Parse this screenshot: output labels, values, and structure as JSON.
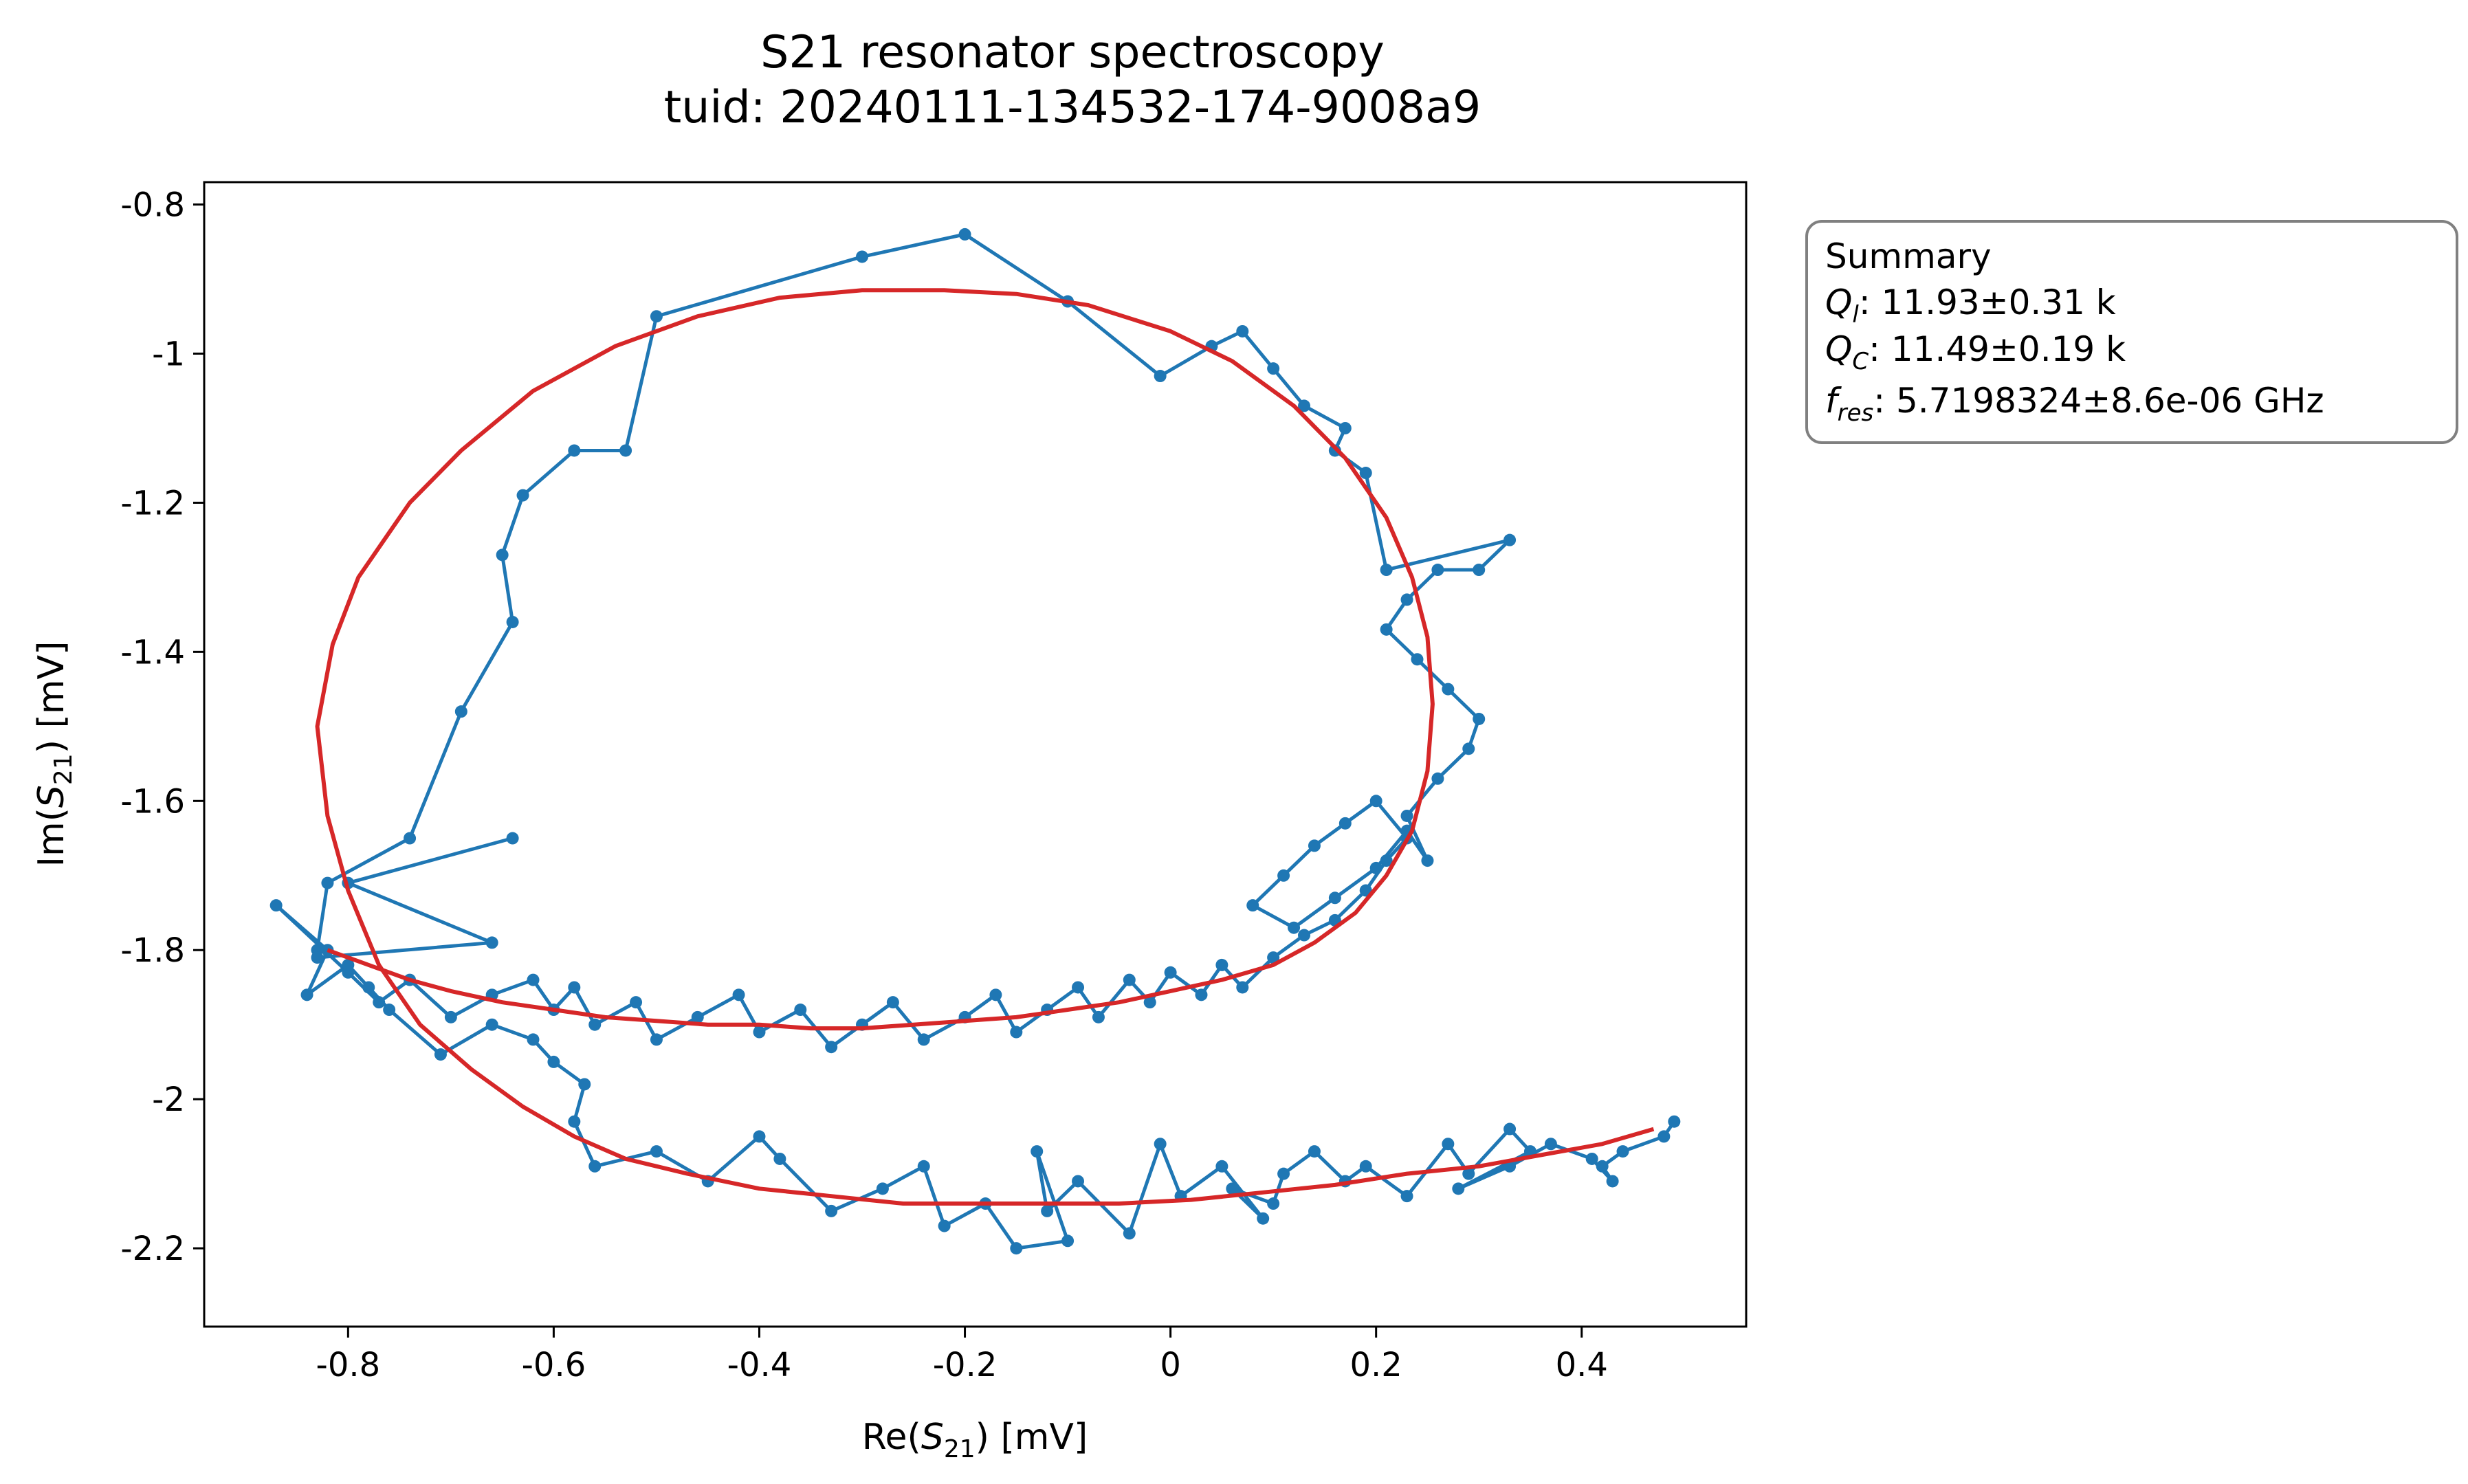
{
  "chart_data": {
    "type": "line",
    "title": "S21 resonator spectroscopy",
    "subtitle": "tuid: 20240111-134532-174-9008a9",
    "xlabel": {
      "prefix": "Re(",
      "sym": "S",
      "sub": "21",
      "suffix": ") [mV]"
    },
    "ylabel": {
      "prefix": "Im(",
      "sym": "S",
      "sub": "21",
      "suffix": ") [mV]"
    },
    "xlim": [
      -0.94,
      0.56
    ],
    "ylim": [
      -2.305,
      -0.77
    ],
    "xticks": [
      -0.8,
      -0.6,
      -0.4,
      -0.2,
      0,
      0.2,
      0.4
    ],
    "xtick_labels": [
      "-0.8",
      "-0.6",
      "-0.4",
      "-0.2",
      "0",
      "0.2",
      "0.4"
    ],
    "yticks": [
      -0.8,
      -1.0,
      -1.2,
      -1.4,
      -1.6,
      -1.8,
      -2.0,
      -2.2
    ],
    "ytick_labels": [
      "-0.8",
      "-1",
      "-1.2",
      "-1.4",
      "-1.6",
      "-1.8",
      "-2",
      "-2.2"
    ],
    "grid": false,
    "colors": {
      "data": "#1f77b4",
      "fit": "#d62728",
      "summary_border": "#808080"
    },
    "summary": {
      "title": "Summary",
      "lines": [
        {
          "sym": "Q",
          "sub": "l",
          "value": ": 11.93±0.31 k"
        },
        {
          "sym": "Q",
          "sub": "C",
          "value": ": 11.49±0.19 k"
        },
        {
          "sym": "f",
          "sub": "res",
          "value": ": 5.7198324±8.6e-06 GHz"
        }
      ]
    },
    "series": [
      {
        "style": "line-with-markers",
        "x": [
          0.49,
          0.48,
          0.44,
          0.42,
          0.43,
          0.41,
          0.37,
          0.33,
          0.28,
          0.35,
          0.33,
          0.29,
          0.27,
          0.23,
          0.19,
          0.17,
          0.14,
          0.11,
          0.1,
          0.06,
          0.09,
          0.05,
          0.01,
          -0.01,
          -0.04,
          -0.09,
          -0.12,
          -0.13,
          -0.1,
          -0.15,
          -0.18,
          -0.22,
          -0.24,
          -0.28,
          -0.33,
          -0.38,
          -0.4,
          -0.45,
          -0.5,
          -0.56,
          -0.58,
          -0.57,
          -0.6,
          -0.62,
          -0.66,
          -0.71,
          -0.76,
          -0.78,
          -0.8,
          -0.84,
          -0.82,
          -0.87,
          -0.8,
          -0.77,
          -0.74,
          -0.7,
          -0.66,
          -0.62,
          -0.6,
          -0.58,
          -0.56,
          -0.52,
          -0.5,
          -0.46,
          -0.42,
          -0.4,
          -0.36,
          -0.33,
          -0.3,
          -0.27,
          -0.24,
          -0.2,
          -0.17,
          -0.15,
          -0.12,
          -0.09,
          -0.07,
          -0.04,
          -0.02,
          0.0,
          0.03,
          0.05,
          0.07,
          0.1,
          0.13,
          0.16,
          0.19,
          0.21,
          0.23,
          0.2,
          0.17,
          0.14,
          0.11,
          0.08,
          0.12,
          0.16,
          0.2,
          0.23,
          0.25,
          0.23,
          0.26,
          0.29,
          0.3,
          0.27,
          0.24,
          0.21,
          0.23,
          0.26,
          0.3,
          0.33,
          0.21,
          0.19,
          0.16,
          0.17,
          0.13,
          0.1,
          0.07,
          0.04,
          -0.01,
          -0.1,
          -0.2,
          -0.3,
          -0.5,
          -0.53,
          -0.58,
          -0.63,
          -0.65,
          -0.64,
          -0.69,
          -0.74,
          -0.82,
          -0.83,
          -0.83,
          -0.66,
          -0.8,
          -0.64
        ],
        "y": [
          -2.03,
          -2.05,
          -2.07,
          -2.09,
          -2.11,
          -2.08,
          -2.06,
          -2.09,
          -2.12,
          -2.07,
          -2.04,
          -2.1,
          -2.06,
          -2.13,
          -2.09,
          -2.11,
          -2.07,
          -2.1,
          -2.14,
          -2.12,
          -2.16,
          -2.09,
          -2.13,
          -2.06,
          -2.18,
          -2.11,
          -2.15,
          -2.07,
          -2.19,
          -2.2,
          -2.14,
          -2.17,
          -2.09,
          -2.12,
          -2.15,
          -2.08,
          -2.05,
          -2.11,
          -2.07,
          -2.09,
          -2.03,
          -1.98,
          -1.95,
          -1.92,
          -1.9,
          -1.94,
          -1.88,
          -1.85,
          -1.82,
          -1.86,
          -1.8,
          -1.74,
          -1.83,
          -1.87,
          -1.84,
          -1.89,
          -1.86,
          -1.84,
          -1.88,
          -1.85,
          -1.9,
          -1.87,
          -1.92,
          -1.89,
          -1.86,
          -1.91,
          -1.88,
          -1.93,
          -1.9,
          -1.87,
          -1.92,
          -1.89,
          -1.86,
          -1.91,
          -1.88,
          -1.85,
          -1.89,
          -1.84,
          -1.87,
          -1.83,
          -1.86,
          -1.82,
          -1.85,
          -1.81,
          -1.78,
          -1.76,
          -1.72,
          -1.68,
          -1.65,
          -1.6,
          -1.63,
          -1.66,
          -1.7,
          -1.74,
          -1.77,
          -1.73,
          -1.69,
          -1.64,
          -1.68,
          -1.62,
          -1.57,
          -1.53,
          -1.49,
          -1.45,
          -1.41,
          -1.37,
          -1.33,
          -1.29,
          -1.29,
          -1.25,
          -1.29,
          -1.16,
          -1.13,
          -1.1,
          -1.07,
          -1.02,
          -0.97,
          -0.99,
          -1.03,
          -0.93,
          -0.84,
          -0.87,
          -0.95,
          -1.13,
          -1.13,
          -1.19,
          -1.27,
          -1.36,
          -1.48,
          -1.65,
          -1.71,
          -1.8,
          -1.81,
          -1.79,
          -1.71,
          -1.65
        ]
      },
      {
        "style": "fit-line",
        "x": [
          -0.82,
          -0.78,
          -0.74,
          -0.7,
          -0.65,
          -0.6,
          -0.55,
          -0.5,
          -0.45,
          -0.4,
          -0.35,
          -0.3,
          -0.25,
          -0.2,
          -0.15,
          -0.1,
          -0.05,
          0.0,
          0.05,
          0.1,
          0.14,
          0.18,
          0.21,
          0.235,
          0.25,
          0.255,
          0.25,
          0.235,
          0.21,
          0.17,
          0.12,
          0.06,
          0.0,
          -0.08,
          -0.15,
          -0.22,
          -0.3,
          -0.38,
          -0.46,
          -0.54,
          -0.62,
          -0.69,
          -0.74,
          -0.79,
          -0.815,
          -0.83,
          -0.82,
          -0.8,
          -0.77,
          -0.73,
          -0.68,
          -0.63,
          -0.58,
          -0.53,
          -0.47,
          -0.4,
          -0.33,
          -0.26,
          -0.19,
          -0.12,
          -0.05,
          0.02,
          0.09,
          0.16,
          0.23,
          0.3,
          0.36,
          0.42,
          0.47
        ],
        "y": [
          -1.8,
          -1.82,
          -1.84,
          -1.855,
          -1.87,
          -1.88,
          -1.89,
          -1.895,
          -1.9,
          -1.9,
          -1.905,
          -1.905,
          -1.9,
          -1.895,
          -1.89,
          -1.88,
          -1.87,
          -1.855,
          -1.84,
          -1.82,
          -1.79,
          -1.75,
          -1.7,
          -1.64,
          -1.56,
          -1.47,
          -1.38,
          -1.3,
          -1.22,
          -1.14,
          -1.07,
          -1.01,
          -0.97,
          -0.935,
          -0.92,
          -0.915,
          -0.915,
          -0.925,
          -0.95,
          -0.99,
          -1.05,
          -1.13,
          -1.2,
          -1.3,
          -1.39,
          -1.5,
          -1.62,
          -1.72,
          -1.82,
          -1.9,
          -1.96,
          -2.01,
          -2.05,
          -2.08,
          -2.1,
          -2.12,
          -2.13,
          -2.14,
          -2.14,
          -2.14,
          -2.14,
          -2.135,
          -2.125,
          -2.115,
          -2.1,
          -2.09,
          -2.075,
          -2.06,
          -2.04
        ]
      }
    ]
  }
}
